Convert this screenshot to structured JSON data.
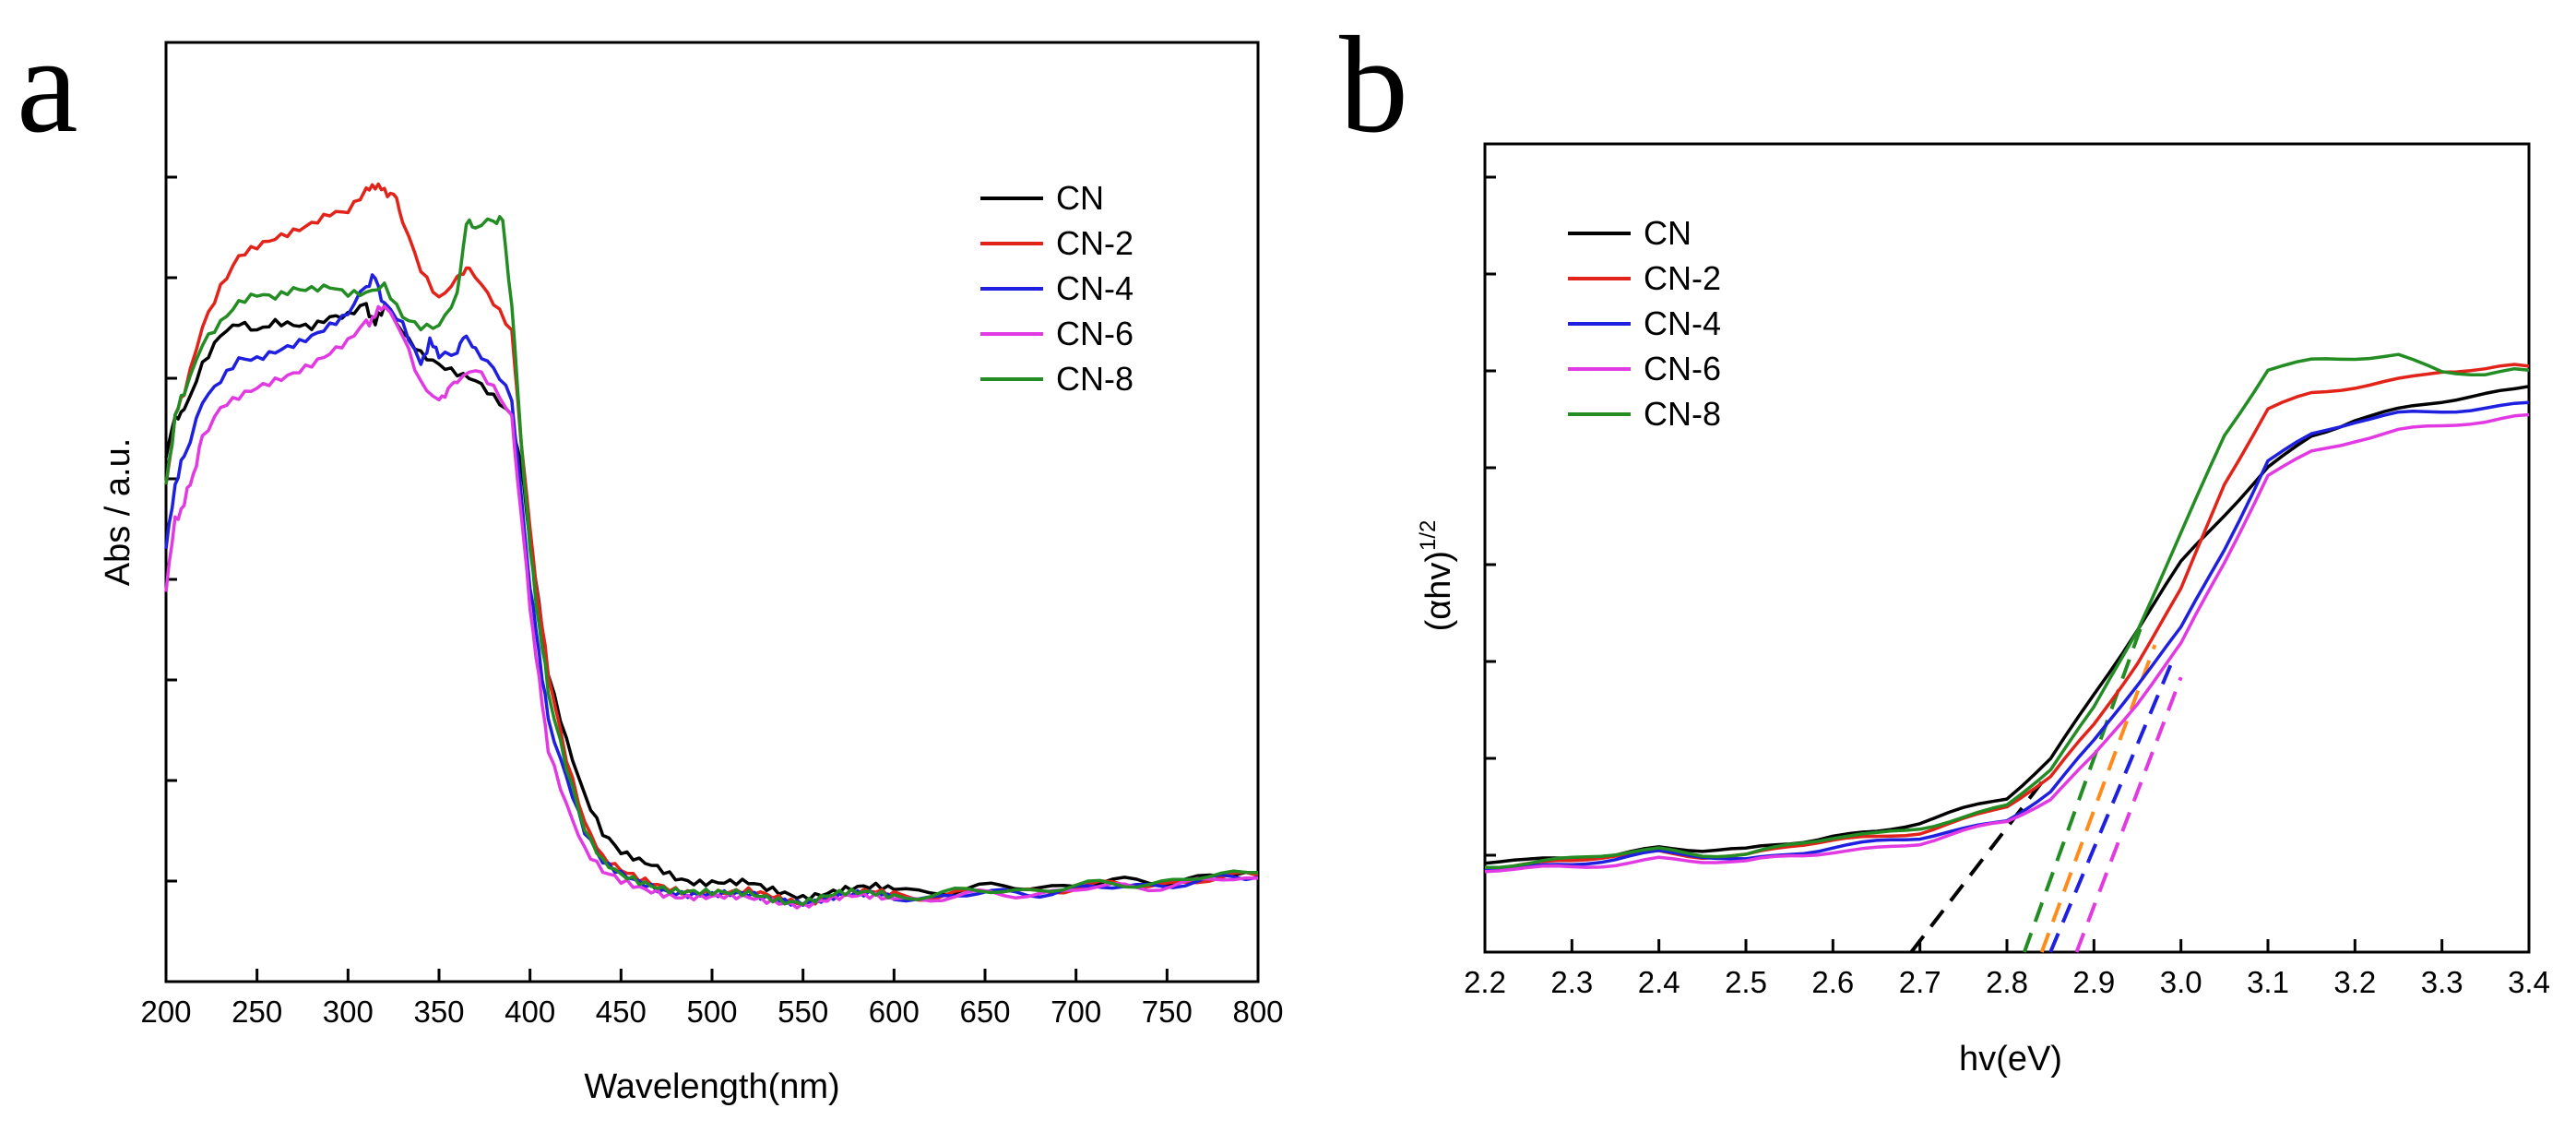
{
  "chart_data": [
    {
      "panel_label": "a",
      "type": "line",
      "title": "",
      "xlabel": "Wavelength(nm)",
      "ylabel": "Abs / a.u.",
      "xlim": [
        200,
        800
      ],
      "ylim": [
        0,
        1
      ],
      "xticks": [
        200,
        250,
        300,
        350,
        400,
        450,
        500,
        550,
        600,
        650,
        700,
        750,
        800
      ],
      "ytick_labels_shown": false,
      "legend_position": "top-right",
      "series": [
        {
          "name": "CN",
          "color": "#000000",
          "x": [
            200,
            205,
            210,
            220,
            230,
            240,
            250,
            260,
            270,
            280,
            290,
            300,
            310,
            315,
            320,
            330,
            340,
            350,
            360,
            370,
            380,
            390,
            395,
            400,
            405,
            410,
            420,
            430,
            440,
            450,
            460,
            470,
            480,
            490,
            500,
            510,
            520,
            530,
            540,
            550,
            560,
            570,
            580,
            590,
            600,
            620,
            640,
            660,
            680,
            700,
            720,
            740,
            760,
            780,
            800
          ],
          "y": [
            0.56,
            0.6,
            0.61,
            0.66,
            0.69,
            0.7,
            0.69,
            0.7,
            0.7,
            0.7,
            0.71,
            0.71,
            0.72,
            0.7,
            0.72,
            0.69,
            0.67,
            0.66,
            0.65,
            0.64,
            0.62,
            0.6,
            0.55,
            0.47,
            0.4,
            0.33,
            0.26,
            0.2,
            0.157,
            0.135,
            0.127,
            0.122,
            0.113,
            0.108,
            0.106,
            0.104,
            0.103,
            0.098,
            0.095,
            0.092,
            0.095,
            0.097,
            0.098,
            0.099,
            0.098,
            0.097,
            0.098,
            0.1,
            0.102,
            0.103,
            0.105,
            0.107,
            0.11,
            0.112,
            0.116
          ]
        },
        {
          "name": "CN-2",
          "color": "#e2231a",
          "x": [
            200,
            205,
            210,
            220,
            230,
            240,
            250,
            260,
            270,
            280,
            290,
            300,
            310,
            315,
            320,
            325,
            330,
            340,
            350,
            360,
            365,
            370,
            380,
            390,
            395,
            400,
            405,
            410,
            420,
            430,
            440,
            450,
            460,
            470,
            480,
            490,
            500,
            510,
            520,
            530,
            540,
            550,
            560,
            570,
            580,
            590,
            600,
            620,
            640,
            660,
            680,
            700,
            720,
            740,
            760,
            780,
            800
          ],
          "y": [
            0.53,
            0.6,
            0.63,
            0.7,
            0.74,
            0.77,
            0.78,
            0.79,
            0.8,
            0.81,
            0.82,
            0.82,
            0.84,
            0.85,
            0.84,
            0.84,
            0.81,
            0.76,
            0.73,
            0.75,
            0.76,
            0.75,
            0.72,
            0.69,
            0.58,
            0.48,
            0.4,
            0.33,
            0.24,
            0.17,
            0.13,
            0.116,
            0.108,
            0.104,
            0.1,
            0.097,
            0.094,
            0.093,
            0.094,
            0.092,
            0.089,
            0.086,
            0.089,
            0.092,
            0.093,
            0.094,
            0.093,
            0.092,
            0.094,
            0.096,
            0.098,
            0.1,
            0.102,
            0.104,
            0.107,
            0.109,
            0.113
          ]
        },
        {
          "name": "CN-4",
          "color": "#1f1fe0",
          "x": [
            200,
            205,
            210,
            220,
            230,
            240,
            250,
            260,
            270,
            280,
            290,
            300,
            310,
            315,
            320,
            330,
            340,
            345,
            350,
            360,
            365,
            370,
            380,
            390,
            395,
            400,
            405,
            410,
            420,
            430,
            440,
            450,
            460,
            470,
            480,
            490,
            500,
            510,
            520,
            530,
            540,
            550,
            560,
            570,
            580,
            590,
            600,
            620,
            640,
            660,
            680,
            700,
            720,
            740,
            760,
            780,
            800
          ],
          "y": [
            0.46,
            0.53,
            0.56,
            0.62,
            0.64,
            0.66,
            0.66,
            0.67,
            0.68,
            0.69,
            0.7,
            0.71,
            0.74,
            0.75,
            0.72,
            0.7,
            0.66,
            0.68,
            0.67,
            0.67,
            0.69,
            0.67,
            0.65,
            0.62,
            0.52,
            0.42,
            0.35,
            0.28,
            0.22,
            0.16,
            0.125,
            0.112,
            0.105,
            0.1,
            0.097,
            0.094,
            0.092,
            0.091,
            0.091,
            0.089,
            0.088,
            0.086,
            0.088,
            0.09,
            0.091,
            0.092,
            0.091,
            0.09,
            0.092,
            0.094,
            0.096,
            0.098,
            0.1,
            0.103,
            0.106,
            0.108,
            0.111
          ]
        },
        {
          "name": "CN-6",
          "color": "#e23ae2",
          "x": [
            200,
            205,
            210,
            215,
            220,
            230,
            240,
            250,
            260,
            270,
            280,
            290,
            300,
            310,
            315,
            320,
            330,
            340,
            350,
            355,
            360,
            370,
            380,
            390,
            395,
            400,
            405,
            410,
            420,
            430,
            440,
            450,
            460,
            470,
            480,
            490,
            500,
            510,
            520,
            530,
            540,
            550,
            560,
            570,
            580,
            590,
            600,
            620,
            640,
            660,
            680,
            700,
            720,
            740,
            760,
            780,
            800
          ],
          "y": [
            0.42,
            0.49,
            0.51,
            0.54,
            0.58,
            0.61,
            0.62,
            0.63,
            0.64,
            0.65,
            0.66,
            0.67,
            0.68,
            0.7,
            0.71,
            0.72,
            0.69,
            0.64,
            0.62,
            0.63,
            0.64,
            0.65,
            0.63,
            0.6,
            0.5,
            0.4,
            0.32,
            0.25,
            0.19,
            0.14,
            0.115,
            0.105,
            0.1,
            0.097,
            0.093,
            0.091,
            0.089,
            0.088,
            0.088,
            0.087,
            0.086,
            0.083,
            0.086,
            0.088,
            0.089,
            0.09,
            0.089,
            0.089,
            0.091,
            0.093,
            0.095,
            0.098,
            0.1,
            0.102,
            0.105,
            0.108,
            0.11
          ]
        },
        {
          "name": "CN-8",
          "color": "#238c23",
          "x": [
            200,
            205,
            210,
            220,
            230,
            240,
            250,
            260,
            270,
            280,
            290,
            300,
            310,
            320,
            330,
            340,
            350,
            360,
            365,
            370,
            380,
            385,
            390,
            395,
            400,
            405,
            410,
            420,
            430,
            440,
            450,
            460,
            470,
            480,
            490,
            500,
            510,
            520,
            530,
            540,
            550,
            560,
            570,
            580,
            590,
            600,
            620,
            640,
            660,
            680,
            700,
            720,
            740,
            760,
            780,
            800
          ],
          "y": [
            0.53,
            0.6,
            0.63,
            0.68,
            0.7,
            0.72,
            0.73,
            0.73,
            0.74,
            0.74,
            0.74,
            0.73,
            0.73,
            0.74,
            0.71,
            0.7,
            0.7,
            0.73,
            0.81,
            0.8,
            0.81,
            0.81,
            0.72,
            0.58,
            0.46,
            0.38,
            0.31,
            0.23,
            0.16,
            0.125,
            0.112,
            0.107,
            0.103,
            0.099,
            0.096,
            0.093,
            0.092,
            0.093,
            0.091,
            0.088,
            0.086,
            0.089,
            0.092,
            0.093,
            0.094,
            0.093,
            0.093,
            0.095,
            0.097,
            0.099,
            0.101,
            0.103,
            0.106,
            0.109,
            0.112,
            0.116
          ]
        }
      ]
    },
    {
      "panel_label": "b",
      "type": "line",
      "title": "",
      "xlabel": "hv(eV)",
      "ylabel_main": "(αhv)",
      "ylabel_exponent": "1/2",
      "xlim": [
        2.2,
        3.4
      ],
      "ylim": [
        0,
        1
      ],
      "xticks": [
        "2.2",
        "2.3",
        "2.4",
        "2.5",
        "2.6",
        "2.7",
        "2.8",
        "2.9",
        "3.0",
        "3.1",
        "3.2",
        "3.3",
        "3.4"
      ],
      "ytick_labels_shown": false,
      "legend_position": "top-left",
      "series": [
        {
          "name": "CN",
          "color": "#000000",
          "x": [
            2.2,
            2.25,
            2.3,
            2.35,
            2.4,
            2.45,
            2.5,
            2.55,
            2.6,
            2.65,
            2.7,
            2.75,
            2.8,
            2.85,
            2.9,
            2.95,
            3.0,
            3.05,
            3.1,
            3.15,
            3.2,
            3.25,
            3.3,
            3.35,
            3.4
          ],
          "y": [
            0.11,
            0.112,
            0.118,
            0.122,
            0.13,
            0.125,
            0.125,
            0.135,
            0.145,
            0.15,
            0.16,
            0.175,
            0.19,
            0.24,
            0.32,
            0.4,
            0.48,
            0.54,
            0.6,
            0.64,
            0.66,
            0.67,
            0.68,
            0.69,
            0.7
          ]
        },
        {
          "name": "CN-2",
          "color": "#e2231a",
          "x": [
            2.2,
            2.25,
            2.3,
            2.35,
            2.4,
            2.45,
            2.5,
            2.55,
            2.6,
            2.65,
            2.7,
            2.75,
            2.8,
            2.85,
            2.9,
            2.95,
            3.0,
            3.05,
            3.1,
            3.15,
            3.2,
            3.25,
            3.3,
            3.35,
            3.4
          ],
          "y": [
            0.105,
            0.108,
            0.112,
            0.118,
            0.125,
            0.12,
            0.12,
            0.13,
            0.137,
            0.142,
            0.15,
            0.165,
            0.18,
            0.215,
            0.28,
            0.36,
            0.45,
            0.58,
            0.67,
            0.69,
            0.7,
            0.71,
            0.72,
            0.72,
            0.725
          ]
        },
        {
          "name": "CN-4",
          "color": "#1f1fe0",
          "x": [
            2.2,
            2.25,
            2.3,
            2.35,
            2.4,
            2.45,
            2.5,
            2.55,
            2.6,
            2.65,
            2.7,
            2.75,
            2.8,
            2.85,
            2.9,
            2.95,
            3.0,
            3.05,
            3.1,
            3.15,
            3.2,
            3.25,
            3.3,
            3.35,
            3.4
          ],
          "y": [
            0.105,
            0.107,
            0.11,
            0.115,
            0.122,
            0.118,
            0.115,
            0.123,
            0.13,
            0.135,
            0.14,
            0.152,
            0.165,
            0.2,
            0.26,
            0.33,
            0.4,
            0.5,
            0.61,
            0.64,
            0.655,
            0.665,
            0.67,
            0.675,
            0.68
          ]
        },
        {
          "name": "CN-6",
          "color": "#e23ae2",
          "x": [
            2.2,
            2.25,
            2.3,
            2.35,
            2.4,
            2.45,
            2.5,
            2.55,
            2.6,
            2.65,
            2.7,
            2.75,
            2.8,
            2.85,
            2.9,
            2.95,
            3.0,
            3.05,
            3.1,
            3.15,
            3.2,
            3.25,
            3.3,
            3.35,
            3.4
          ],
          "y": [
            0.1,
            0.102,
            0.105,
            0.11,
            0.117,
            0.112,
            0.11,
            0.118,
            0.125,
            0.13,
            0.135,
            0.148,
            0.16,
            0.19,
            0.245,
            0.31,
            0.38,
            0.48,
            0.59,
            0.62,
            0.635,
            0.645,
            0.65,
            0.655,
            0.665
          ]
        },
        {
          "name": "CN-8",
          "color": "#238c23",
          "x": [
            2.2,
            2.25,
            2.3,
            2.35,
            2.4,
            2.45,
            2.5,
            2.55,
            2.6,
            2.65,
            2.7,
            2.75,
            2.8,
            2.85,
            2.9,
            2.95,
            3.0,
            3.05,
            3.1,
            3.15,
            3.2,
            3.25,
            3.3,
            3.35,
            3.4
          ],
          "y": [
            0.108,
            0.11,
            0.115,
            0.12,
            0.127,
            0.122,
            0.122,
            0.132,
            0.14,
            0.145,
            0.155,
            0.168,
            0.182,
            0.225,
            0.3,
            0.4,
            0.52,
            0.64,
            0.72,
            0.73,
            0.735,
            0.74,
            0.72,
            0.715,
            0.72
          ]
        }
      ],
      "tangent_lines": [
        {
          "name": "CN fit",
          "color": "#000000",
          "x": [
            2.69,
            2.84
          ],
          "y": [
            0.0,
            0.21
          ]
        },
        {
          "name": "CN-8 fit",
          "color": "#238c23",
          "x": [
            2.82,
            2.96
          ],
          "y": [
            0.0,
            0.42
          ]
        },
        {
          "name": "CN-2 fit",
          "color": "#ff8c1a",
          "x": [
            2.84,
            2.97
          ],
          "y": [
            0.0,
            0.38
          ]
        },
        {
          "name": "CN-4 fit",
          "color": "#1f1fe0",
          "x": [
            2.85,
            2.99
          ],
          "y": [
            0.0,
            0.36
          ]
        },
        {
          "name": "CN-6 fit",
          "color": "#e23ae2",
          "x": [
            2.88,
            3.0
          ],
          "y": [
            0.0,
            0.34
          ]
        }
      ]
    }
  ]
}
